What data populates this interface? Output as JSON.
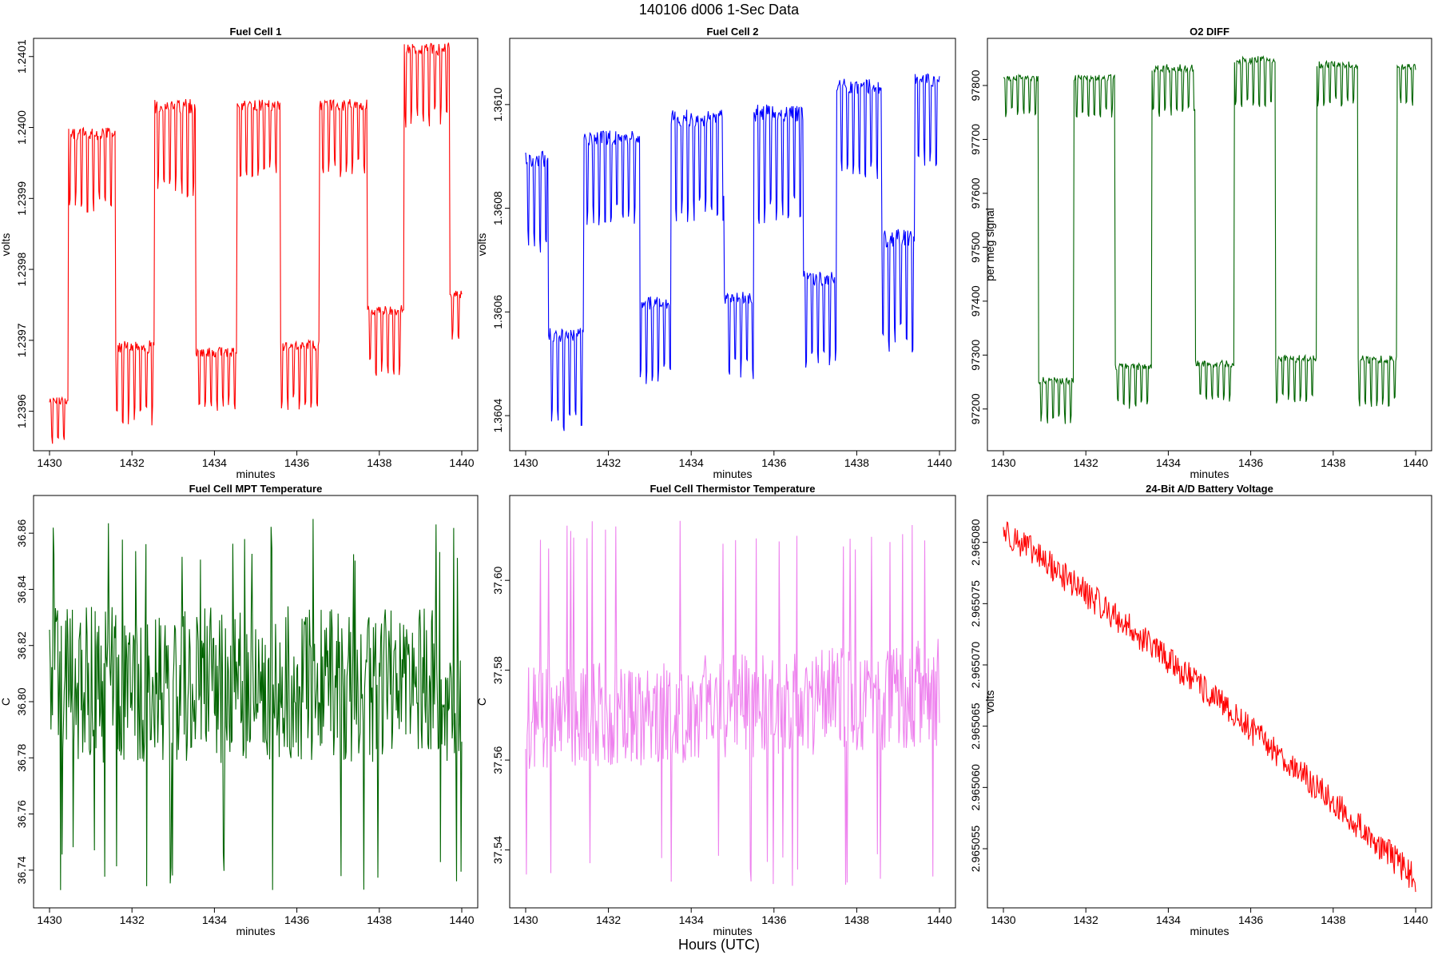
{
  "title": "140106   d006   1-Sec Data",
  "footer": "Hours (UTC)",
  "chart_data": [
    {
      "type": "line",
      "title": "Fuel Cell 1",
      "xlabel": "minutes",
      "ylabel": "volts",
      "color": "#ff0000",
      "xlim": [
        1430,
        1440
      ],
      "ylim": [
        1.23955,
        1.24012
      ],
      "xticks": [
        1430,
        1432,
        1434,
        1436,
        1438,
        1440
      ],
      "yticks": [
        1.2396,
        1.2397,
        1.2398,
        1.2399,
        1.24,
        1.2401
      ],
      "ytick_labels": [
        "1.2396",
        "1.2397",
        "1.2398",
        "1.2399",
        "1.2400",
        "1.2401"
      ],
      "segments": [
        {
          "x0": 1430.0,
          "x1": 1430.45,
          "low": 1.23955,
          "high": 1.23962
        },
        {
          "x0": 1430.45,
          "x1": 1431.6,
          "low": 1.23988,
          "high": 1.24
        },
        {
          "x0": 1431.6,
          "x1": 1432.55,
          "low": 1.23958,
          "high": 1.2397
        },
        {
          "x0": 1432.55,
          "x1": 1433.55,
          "low": 1.2399,
          "high": 1.24004
        },
        {
          "x0": 1433.55,
          "x1": 1434.55,
          "low": 1.2396,
          "high": 1.23969
        },
        {
          "x0": 1434.55,
          "x1": 1435.6,
          "low": 1.23993,
          "high": 1.24004
        },
        {
          "x0": 1435.6,
          "x1": 1436.55,
          "low": 1.2396,
          "high": 1.2397
        },
        {
          "x0": 1436.55,
          "x1": 1437.7,
          "low": 1.23993,
          "high": 1.24004
        },
        {
          "x0": 1437.7,
          "x1": 1438.6,
          "low": 1.23965,
          "high": 1.23975
        },
        {
          "x0": 1438.6,
          "x1": 1439.7,
          "low": 1.24,
          "high": 1.24012
        },
        {
          "x0": 1439.7,
          "x1": 1440.0,
          "low": 1.2397,
          "high": 1.23977
        }
      ]
    },
    {
      "type": "line",
      "title": "Fuel Cell 2",
      "xlabel": "minutes",
      "ylabel": "volts",
      "color": "#0000ff",
      "xlim": [
        1430,
        1440
      ],
      "ylim": [
        1.36034,
        1.36112
      ],
      "xticks": [
        1430,
        1432,
        1434,
        1436,
        1438,
        1440
      ],
      "yticks": [
        1.3604,
        1.3606,
        1.3608,
        1.361
      ],
      "ytick_labels": [
        "1.3604",
        "1.3606",
        "1.3608",
        "1.3610"
      ],
      "segments": [
        {
          "x0": 1430.0,
          "x1": 1430.55,
          "low": 1.36071,
          "high": 1.36091
        },
        {
          "x0": 1430.55,
          "x1": 1431.4,
          "low": 1.36037,
          "high": 1.36057
        },
        {
          "x0": 1431.4,
          "x1": 1432.75,
          "low": 1.36076,
          "high": 1.36095
        },
        {
          "x0": 1432.75,
          "x1": 1433.5,
          "low": 1.36046,
          "high": 1.36063
        },
        {
          "x0": 1433.5,
          "x1": 1434.8,
          "low": 1.36077,
          "high": 1.36099
        },
        {
          "x0": 1434.8,
          "x1": 1435.5,
          "low": 1.36047,
          "high": 1.36064
        },
        {
          "x0": 1435.5,
          "x1": 1436.7,
          "low": 1.36077,
          "high": 1.361
        },
        {
          "x0": 1436.7,
          "x1": 1437.5,
          "low": 1.36049,
          "high": 1.36068
        },
        {
          "x0": 1437.5,
          "x1": 1438.6,
          "low": 1.36085,
          "high": 1.36105
        },
        {
          "x0": 1438.6,
          "x1": 1439.4,
          "low": 1.36052,
          "high": 1.36076
        },
        {
          "x0": 1439.4,
          "x1": 1440.0,
          "low": 1.36088,
          "high": 1.36106
        }
      ]
    },
    {
      "type": "line",
      "title": "O2 DIFF",
      "xlabel": "minutes",
      "ylabel": "per meg signal",
      "color": "#006400",
      "xlim": [
        1430,
        1440
      ],
      "ylim": [
        97130,
        97880
      ],
      "xticks": [
        1430,
        1432,
        1434,
        1436,
        1438,
        1440
      ],
      "yticks": [
        97200,
        97300,
        97400,
        97500,
        97600,
        97700,
        97800
      ],
      "ytick_labels": [
        "97200",
        "97300",
        "97400",
        "97500",
        "97600",
        "97700",
        "97800"
      ],
      "segments": [
        {
          "x0": 1430.0,
          "x1": 1430.85,
          "low": 97740,
          "high": 97820
        },
        {
          "x0": 1430.85,
          "x1": 1431.7,
          "low": 97170,
          "high": 97260
        },
        {
          "x0": 1431.7,
          "x1": 1432.7,
          "low": 97740,
          "high": 97820
        },
        {
          "x0": 1432.7,
          "x1": 1433.6,
          "low": 97200,
          "high": 97285
        },
        {
          "x0": 1433.6,
          "x1": 1434.65,
          "low": 97740,
          "high": 97840
        },
        {
          "x0": 1434.65,
          "x1": 1435.6,
          "low": 97210,
          "high": 97290
        },
        {
          "x0": 1435.6,
          "x1": 1436.6,
          "low": 97760,
          "high": 97855
        },
        {
          "x0": 1436.6,
          "x1": 1437.6,
          "low": 97210,
          "high": 97300
        },
        {
          "x0": 1437.6,
          "x1": 1438.6,
          "low": 97760,
          "high": 97845
        },
        {
          "x0": 1438.6,
          "x1": 1439.55,
          "low": 97200,
          "high": 97300
        },
        {
          "x0": 1439.55,
          "x1": 1440.0,
          "low": 97760,
          "high": 97840
        }
      ]
    },
    {
      "type": "line",
      "title": "Fuel Cell MPT Temperature",
      "xlabel": "minutes",
      "ylabel": "C",
      "color": "#006400",
      "xlim": [
        1430,
        1440
      ],
      "ylim": [
        36.728,
        36.872
      ],
      "xticks": [
        1430,
        1432,
        1434,
        1436,
        1438,
        1440
      ],
      "yticks": [
        36.74,
        36.76,
        36.78,
        36.8,
        36.82,
        36.84,
        36.86
      ],
      "ytick_labels": [
        "36.74",
        "36.76",
        "36.78",
        "36.80",
        "36.82",
        "36.84",
        "36.86"
      ],
      "noise": {
        "center": 36.806,
        "amplitude": 0.028,
        "spike_min": 36.732,
        "spike_max": 36.866
      }
    },
    {
      "type": "line",
      "title": "Fuel Cell Thermistor Temperature",
      "xlabel": "minutes",
      "ylabel": "C",
      "color": "#ee82ee",
      "xlim": [
        1430,
        1440
      ],
      "ylim": [
        37.528,
        37.618
      ],
      "xticks": [
        1430,
        1432,
        1434,
        1436,
        1438,
        1440
      ],
      "yticks": [
        37.54,
        37.56,
        37.58,
        37.6
      ],
      "ytick_labels": [
        "37.54",
        "37.56",
        "37.58",
        "37.60"
      ],
      "noise": {
        "center_start": 37.569,
        "center_end": 37.575,
        "amplitude": 0.012,
        "spike_min": 37.532,
        "spike_max": 37.614
      }
    },
    {
      "type": "line",
      "title": "24-Bit A/D Battery Voltage",
      "xlabel": "minutes",
      "ylabel": "volts",
      "color": "#ff0000",
      "xlim": [
        1430,
        1440
      ],
      "ylim": [
        2.9650505,
        2.9650835
      ],
      "xticks": [
        1430,
        1432,
        1434,
        1436,
        1438,
        1440
      ],
      "yticks": [
        2.965055,
        2.96506,
        2.965065,
        2.96507,
        2.965075,
        2.96508
      ],
      "ytick_labels": [
        "2.965055",
        "2.965060",
        "2.965065",
        "2.965070",
        "2.965075",
        "2.965080"
      ],
      "trend": {
        "start": 2.965081,
        "end": 2.9650525,
        "noise": 1.2e-06
      }
    }
  ]
}
